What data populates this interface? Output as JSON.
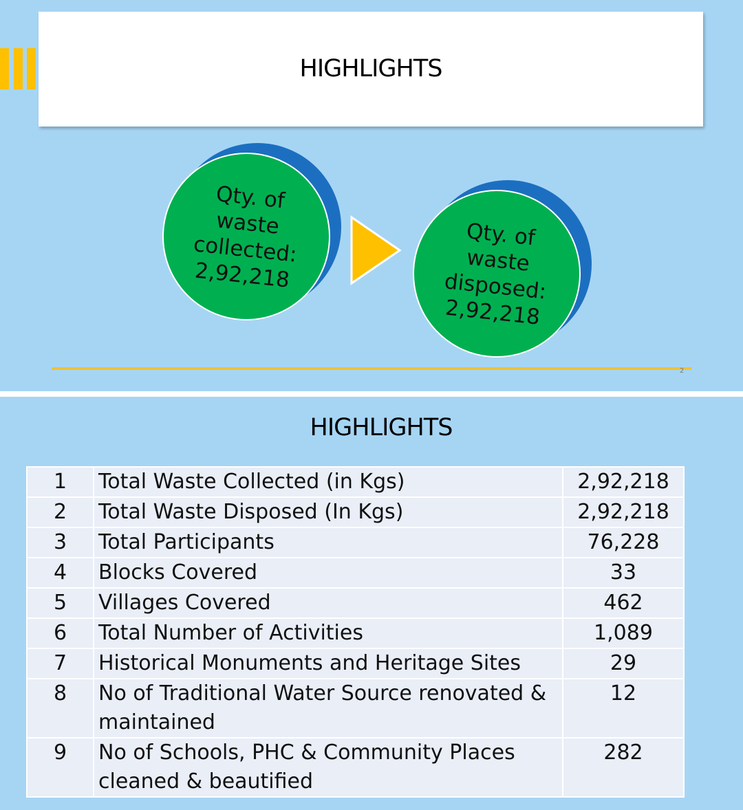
{
  "slides": [
    {
      "title": "HIGHLIGHTS",
      "circles": [
        {
          "label": "Qty. of waste collected:",
          "value": "2,92,218"
        },
        {
          "label": "Qty. of waste disposed:",
          "value": "2,92,218"
        }
      ],
      "page_number": "2"
    },
    {
      "title": "HIGHLIGHTS",
      "table": {
        "rows": [
          [
            "1",
            "Total Waste Collected (in Kgs)",
            "2,92,218"
          ],
          [
            "2",
            "Total Waste Disposed  (In Kgs)",
            "2,92,218"
          ],
          [
            "3",
            "Total Participants",
            "76,228"
          ],
          [
            "4",
            "Blocks Covered",
            "33"
          ],
          [
            "5",
            "Villages Covered",
            "462"
          ],
          [
            "6",
            "Total Number of Activities",
            "1,089"
          ],
          [
            "7",
            "Historical Monuments and Heritage Sites",
            "29"
          ],
          [
            "8",
            "No of Traditional Water Source renovated & maintained",
            "12"
          ],
          [
            "9",
            "No of Schools, PHC & Community Places cleaned & beautified",
            "282"
          ]
        ]
      }
    }
  ]
}
